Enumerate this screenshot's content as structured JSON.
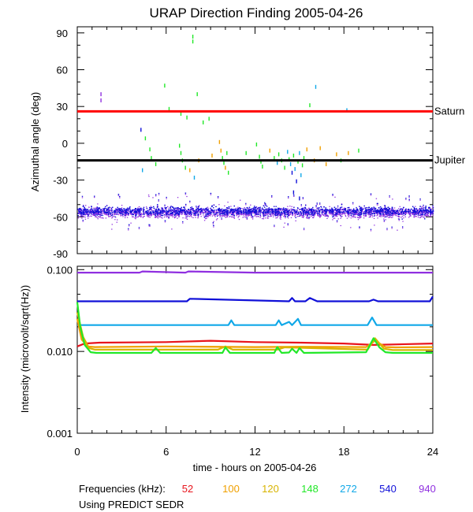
{
  "title": "URAP Direction Finding  2005-04-26",
  "footer": {
    "freq_label": "Frequencies (kHz):",
    "source_label": "Using PREDICT SEDR"
  },
  "colors": {
    "f52": "#e8141c",
    "f100": "#f0a000",
    "f120": "#d8b400",
    "f148": "#22e828",
    "f272": "#10a8e8",
    "f540": "#1010d8",
    "f940": "#9030e0",
    "saturn": "#ff0000",
    "jupiter": "#000000"
  },
  "chart_data": [
    {
      "type": "scatter",
      "ylabel": "Azimuthal angle (deg)",
      "xlim": [
        0,
        24
      ],
      "ylim": [
        -90,
        95
      ],
      "xticks": [
        0,
        6,
        12,
        18,
        24
      ],
      "yticks": [
        {
          "value": 90,
          "label": "90"
        },
        {
          "value": 60,
          "label": "60"
        },
        {
          "value": 30,
          "label": "30"
        },
        {
          "value": 0,
          "label": "0"
        },
        {
          "value": -30,
          "label": "-30"
        },
        {
          "value": -60,
          "label": "-60"
        },
        {
          "value": -90,
          "label": "-90"
        }
      ],
      "reference_lines": [
        {
          "name": "Saturn",
          "y": 26,
          "color": "#ff0000"
        },
        {
          "name": "Jupiter",
          "y": -14,
          "color": "#000000"
        }
      ],
      "bands": [
        {
          "frequency_khz": 940,
          "center": -56,
          "spread": 4.5,
          "x_range": [
            0,
            24
          ],
          "color": "#9030e0"
        },
        {
          "frequency_khz": 540,
          "center": -55,
          "spread": 3.5,
          "x_range": [
            0,
            24
          ],
          "color": "#1010d8"
        }
      ],
      "scattered_points": [
        {
          "x": 7.8,
          "y": 87,
          "frequency_khz": 148
        },
        {
          "x": 7.8,
          "y": 83,
          "frequency_khz": 148
        },
        {
          "x": 1.6,
          "y": 40,
          "frequency_khz": 940
        },
        {
          "x": 1.6,
          "y": 35,
          "frequency_khz": 940
        },
        {
          "x": 5.9,
          "y": 47,
          "frequency_khz": 148
        },
        {
          "x": 8.1,
          "y": 40,
          "frequency_khz": 148
        },
        {
          "x": 16.1,
          "y": 46,
          "frequency_khz": 272
        },
        {
          "x": 15.7,
          "y": 31,
          "frequency_khz": 148
        },
        {
          "x": 18.2,
          "y": 27,
          "frequency_khz": 272
        },
        {
          "x": 6.2,
          "y": 28,
          "frequency_khz": 148
        },
        {
          "x": 7.0,
          "y": 24,
          "frequency_khz": 148
        },
        {
          "x": 7.4,
          "y": 21,
          "frequency_khz": 148
        },
        {
          "x": 8.9,
          "y": 20,
          "frequency_khz": 148
        },
        {
          "x": 8.5,
          "y": 17,
          "frequency_khz": 148
        },
        {
          "x": 4.3,
          "y": 11,
          "frequency_khz": 540
        },
        {
          "x": 4.6,
          "y": 4,
          "frequency_khz": 148
        },
        {
          "x": 4.4,
          "y": -22,
          "frequency_khz": 272
        },
        {
          "x": 4.9,
          "y": -5,
          "frequency_khz": 148
        },
        {
          "x": 5.0,
          "y": -12,
          "frequency_khz": 148
        },
        {
          "x": 5.3,
          "y": -17,
          "frequency_khz": 148
        },
        {
          "x": 6.9,
          "y": -2,
          "frequency_khz": 148
        },
        {
          "x": 7.0,
          "y": -8,
          "frequency_khz": 148
        },
        {
          "x": 7.1,
          "y": -14,
          "frequency_khz": 148
        },
        {
          "x": 7.3,
          "y": -20,
          "frequency_khz": 148
        },
        {
          "x": 7.6,
          "y": -22,
          "frequency_khz": 100
        },
        {
          "x": 7.9,
          "y": -28,
          "frequency_khz": 272
        },
        {
          "x": 8.2,
          "y": -14,
          "frequency_khz": 100
        },
        {
          "x": 9.1,
          "y": -10,
          "frequency_khz": 100
        },
        {
          "x": 9.6,
          "y": 1,
          "frequency_khz": 100
        },
        {
          "x": 9.7,
          "y": -6,
          "frequency_khz": 100
        },
        {
          "x": 9.8,
          "y": -12,
          "frequency_khz": 148
        },
        {
          "x": 9.9,
          "y": -16,
          "frequency_khz": 148
        },
        {
          "x": 10.0,
          "y": -20,
          "frequency_khz": 100
        },
        {
          "x": 10.1,
          "y": -8,
          "frequency_khz": 148
        },
        {
          "x": 10.2,
          "y": -24,
          "frequency_khz": 148
        },
        {
          "x": 11.4,
          "y": -8,
          "frequency_khz": 148
        },
        {
          "x": 12.1,
          "y": -1,
          "frequency_khz": 148
        },
        {
          "x": 12.3,
          "y": -11,
          "frequency_khz": 148
        },
        {
          "x": 12.4,
          "y": -15,
          "frequency_khz": 148
        },
        {
          "x": 12.5,
          "y": -19,
          "frequency_khz": 148
        },
        {
          "x": 13.0,
          "y": -6,
          "frequency_khz": 100
        },
        {
          "x": 13.3,
          "y": -12,
          "frequency_khz": 148
        },
        {
          "x": 13.5,
          "y": -16,
          "frequency_khz": 272
        },
        {
          "x": 13.6,
          "y": -9,
          "frequency_khz": 148
        },
        {
          "x": 13.8,
          "y": -14,
          "frequency_khz": 148
        },
        {
          "x": 14.0,
          "y": -20,
          "frequency_khz": 148
        },
        {
          "x": 14.2,
          "y": -7,
          "frequency_khz": 272
        },
        {
          "x": 14.3,
          "y": -13,
          "frequency_khz": 148
        },
        {
          "x": 14.4,
          "y": -17,
          "frequency_khz": 272
        },
        {
          "x": 14.5,
          "y": -24,
          "frequency_khz": 540
        },
        {
          "x": 14.6,
          "y": -10,
          "frequency_khz": 148
        },
        {
          "x": 14.7,
          "y": -21,
          "frequency_khz": 272
        },
        {
          "x": 14.8,
          "y": -31,
          "frequency_khz": 540
        },
        {
          "x": 14.9,
          "y": -15,
          "frequency_khz": 148
        },
        {
          "x": 15.0,
          "y": -8,
          "frequency_khz": 272
        },
        {
          "x": 15.1,
          "y": -26,
          "frequency_khz": 272
        },
        {
          "x": 15.2,
          "y": -18,
          "frequency_khz": 148
        },
        {
          "x": 15.3,
          "y": -12,
          "frequency_khz": 148
        },
        {
          "x": 15.5,
          "y": -5,
          "frequency_khz": 100
        },
        {
          "x": 16.0,
          "y": -14,
          "frequency_khz": 100
        },
        {
          "x": 16.4,
          "y": -4,
          "frequency_khz": 100
        },
        {
          "x": 16.8,
          "y": -17,
          "frequency_khz": 100
        },
        {
          "x": 17.5,
          "y": -9,
          "frequency_khz": 100
        },
        {
          "x": 17.8,
          "y": -14,
          "frequency_khz": 148
        },
        {
          "x": 18.3,
          "y": -8,
          "frequency_khz": 100
        },
        {
          "x": 19.0,
          "y": -6,
          "frequency_khz": 148
        },
        {
          "x": 14.6,
          "y": -40,
          "frequency_khz": 540
        },
        {
          "x": 15.0,
          "y": -45,
          "frequency_khz": 540
        }
      ]
    },
    {
      "type": "line",
      "ylabel": "Intensity (microvolt/sqrt(Hz))",
      "xlabel": "time - hours on 2005-04-26",
      "xlim": [
        0,
        24
      ],
      "ylim": [
        0.001,
        0.11
      ],
      "yscale": "log",
      "xticks": [
        0,
        6,
        12,
        18,
        24
      ],
      "yticks": [
        {
          "value": 0.1,
          "label": "0.100"
        },
        {
          "value": 0.01,
          "label": "0.010"
        },
        {
          "value": 0.001,
          "label": "0.001"
        }
      ],
      "series": [
        {
          "name": "940",
          "color": "#9030e0",
          "x": [
            0,
            4.2,
            4.4,
            7.3,
            7.5,
            12,
            18,
            24
          ],
          "y": [
            0.092,
            0.092,
            0.095,
            0.092,
            0.095,
            0.092,
            0.092,
            0.092
          ]
        },
        {
          "name": "540",
          "color": "#1010d8",
          "x": [
            0,
            7.4,
            7.6,
            14.3,
            14.5,
            14.7,
            15.4,
            15.7,
            16.2,
            19.7,
            20.0,
            20.3,
            23.8,
            24
          ],
          "y": [
            0.041,
            0.041,
            0.044,
            0.041,
            0.045,
            0.041,
            0.041,
            0.045,
            0.041,
            0.041,
            0.043,
            0.041,
            0.041,
            0.047
          ]
        },
        {
          "name": "272",
          "color": "#10a8e8",
          "x": [
            0,
            5.8,
            10.2,
            10.4,
            10.6,
            13.4,
            13.6,
            13.8,
            14.3,
            14.5,
            14.9,
            15.1,
            15.3,
            19.6,
            19.9,
            20.2,
            24
          ],
          "y": [
            0.021,
            0.021,
            0.021,
            0.024,
            0.021,
            0.021,
            0.024,
            0.021,
            0.023,
            0.021,
            0.025,
            0.021,
            0.021,
            0.021,
            0.026,
            0.021,
            0.021
          ]
        },
        {
          "name": "52",
          "color": "#e8141c",
          "x": [
            0,
            0.5,
            1.5,
            6,
            9,
            12,
            15,
            18,
            20,
            24
          ],
          "y": [
            0.0115,
            0.0125,
            0.0128,
            0.013,
            0.0135,
            0.013,
            0.0128,
            0.0125,
            0.012,
            0.0125
          ]
        },
        {
          "name": "100",
          "color": "#f0a000",
          "x": [
            0,
            0.3,
            0.7,
            1.2,
            6,
            12,
            15,
            19.5,
            20.1,
            20.8,
            21.5,
            24
          ],
          "y": [
            0.025,
            0.014,
            0.0115,
            0.0113,
            0.0115,
            0.0113,
            0.0114,
            0.0113,
            0.0135,
            0.0113,
            0.0112,
            0.0113
          ]
        },
        {
          "name": "120",
          "color": "#d8b400",
          "x": [
            0,
            0.4,
            0.8,
            1.2,
            9.5,
            10,
            10.5,
            13.5,
            14,
            19.6,
            20.1,
            20.7,
            21.3,
            24
          ],
          "y": [
            0.03,
            0.015,
            0.011,
            0.0105,
            0.0105,
            0.0115,
            0.0105,
            0.0105,
            0.0112,
            0.0105,
            0.0145,
            0.0108,
            0.0104,
            0.0104
          ]
        },
        {
          "name": "148",
          "color": "#22e828",
          "x": [
            0,
            0.2,
            0.5,
            0.9,
            1.3,
            5.0,
            5.3,
            5.6,
            9.8,
            10.0,
            10.3,
            13.3,
            13.5,
            13.8,
            14.3,
            14.5,
            14.8,
            15.0,
            15.3,
            19.5,
            20.0,
            20.4,
            20.8,
            21.3,
            24
          ],
          "y": [
            0.04,
            0.02,
            0.012,
            0.0098,
            0.0096,
            0.0096,
            0.011,
            0.0096,
            0.0096,
            0.0112,
            0.0096,
            0.0096,
            0.0113,
            0.0096,
            0.0097,
            0.0108,
            0.0096,
            0.011,
            0.0096,
            0.0098,
            0.0145,
            0.0112,
            0.0098,
            0.0096,
            0.0096
          ]
        }
      ]
    }
  ],
  "frequencies": [
    {
      "label": "52",
      "color": "#e8141c"
    },
    {
      "label": "100",
      "color": "#f0a000"
    },
    {
      "label": "120",
      "color": "#d8b400"
    },
    {
      "label": "148",
      "color": "#22e828"
    },
    {
      "label": "272",
      "color": "#10a8e8"
    },
    {
      "label": "540",
      "color": "#1010d8"
    },
    {
      "label": "940",
      "color": "#9030e0"
    }
  ]
}
